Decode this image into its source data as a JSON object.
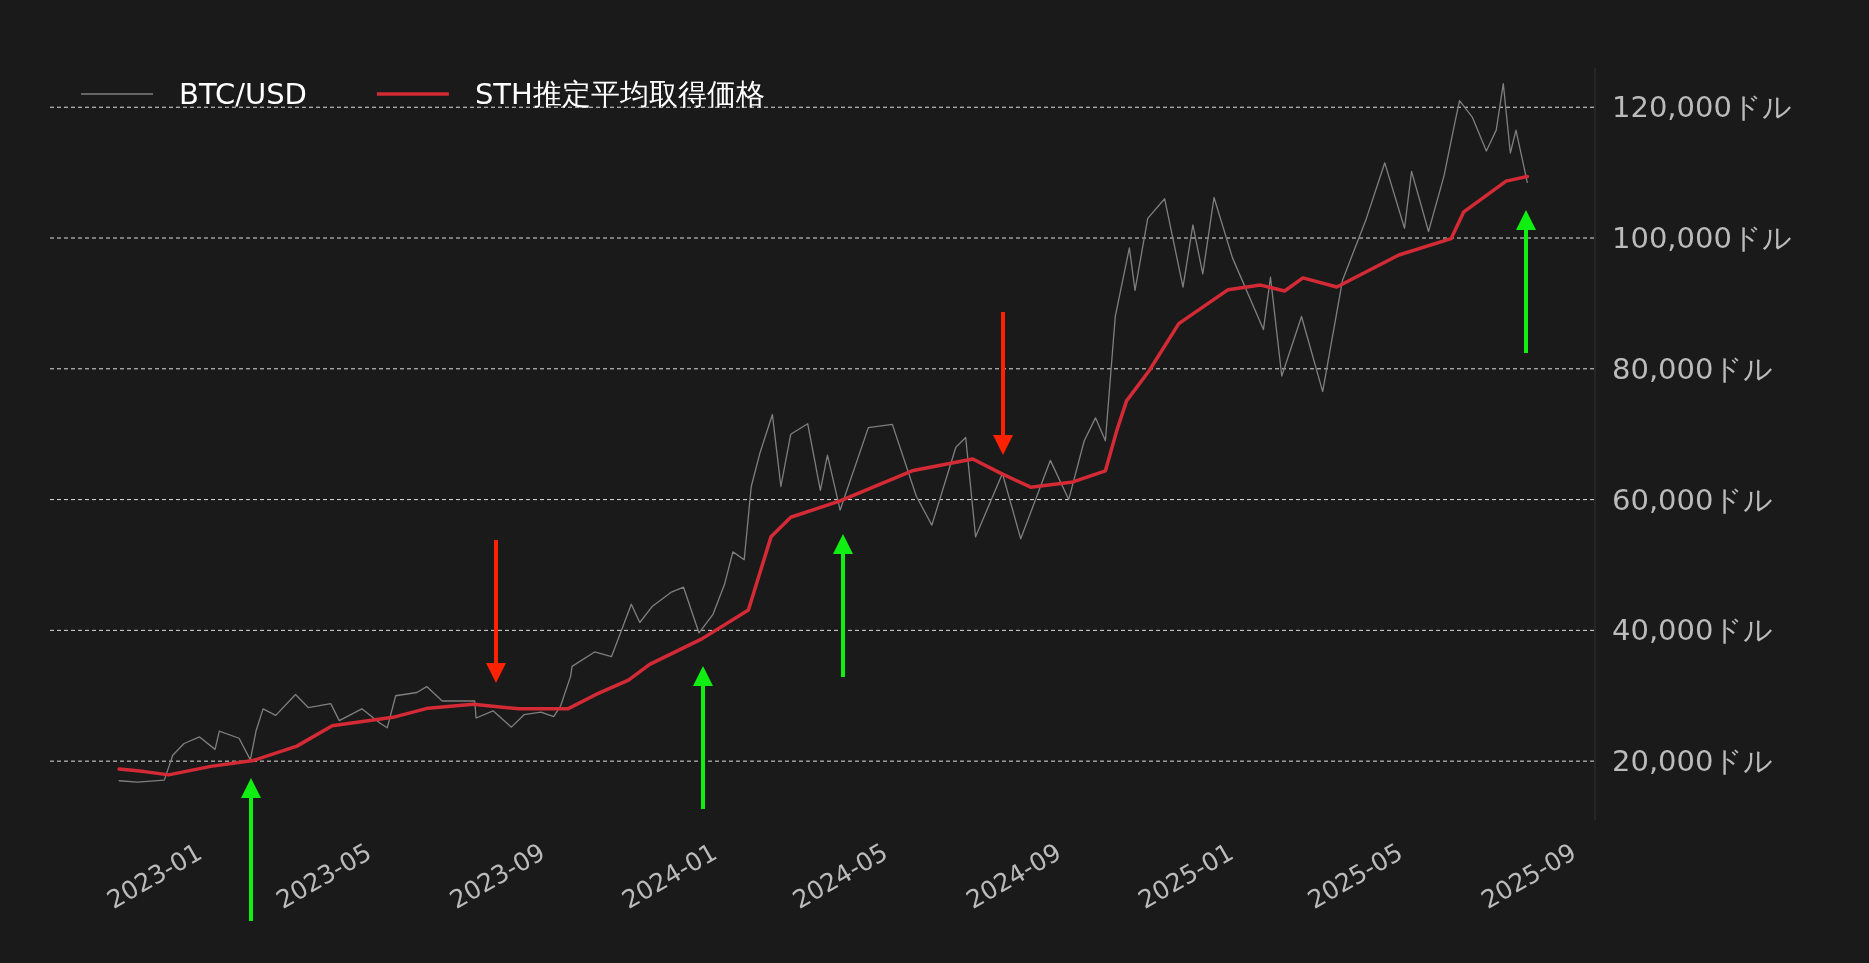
{
  "chart_data": {
    "type": "line",
    "legend": "top left",
    "grid": "y",
    "marker": "none",
    "line_style": "solid",
    "xlim": [
      "2022-10-19",
      "2025-10-18"
    ],
    "ylim": [
      11000,
      126000
    ],
    "xticks": [
      "2023-01",
      "2023-05",
      "2023-09",
      "2024-01",
      "2024-05",
      "2024-09",
      "2025-01",
      "2025-05",
      "2025-09"
    ],
    "yticks": [
      {
        "value": 20000,
        "label": "20,000ドル"
      },
      {
        "value": 40000,
        "label": "40,000ドル"
      },
      {
        "value": 60000,
        "label": "60,000ドル"
      },
      {
        "value": 80000,
        "label": "80,000ドル"
      },
      {
        "value": 100000,
        "label": "100,000ドル"
      },
      {
        "value": 120000,
        "label": "120,000ドル"
      }
    ],
    "series": [
      {
        "name": "BTC/USD",
        "color": "#7f7f7f",
        "x": [
          "2022-12-07",
          "2022-12-20",
          "2023-01-08",
          "2023-01-14",
          "2023-01-22",
          "2023-02-02",
          "2023-02-13",
          "2023-02-16",
          "2023-03-02",
          "2023-03-10",
          "2023-03-14",
          "2023-03-19",
          "2023-03-28",
          "2023-04-11",
          "2023-04-20",
          "2023-04-26",
          "2023-05-06",
          "2023-05-12",
          "2023-05-28",
          "2023-06-10",
          "2023-06-15",
          "2023-06-21",
          "2023-07-06",
          "2023-07-13",
          "2023-07-24",
          "2023-08-16",
          "2023-08-17",
          "2023-08-29",
          "2023-09-11",
          "2023-09-20",
          "2023-10-02",
          "2023-10-11",
          "2023-10-16",
          "2023-10-23",
          "2023-10-24",
          "2023-11-09",
          "2023-11-21",
          "2023-12-05",
          "2023-12-11",
          "2023-12-20",
          "2024-01-02",
          "2024-01-11",
          "2024-01-22",
          "2024-02-01",
          "2024-02-09",
          "2024-02-15",
          "2024-02-23",
          "2024-02-28",
          "2024-03-05",
          "2024-03-14",
          "2024-03-20",
          "2024-03-27",
          "2024-04-08",
          "2024-04-17",
          "2024-04-22",
          "2024-05-01",
          "2024-05-21",
          "2024-06-07",
          "2024-06-24",
          "2024-07-05",
          "2024-07-22",
          "2024-07-29",
          "2024-08-05",
          "2024-08-24",
          "2024-09-06",
          "2024-09-27",
          "2024-10-10",
          "2024-10-21",
          "2024-10-29",
          "2024-11-05",
          "2024-11-12",
          "2024-11-22",
          "2024-11-26",
          "2024-12-05",
          "2024-12-17",
          "2024-12-30",
          "2025-01-06",
          "2025-01-13",
          "2025-01-21",
          "2025-02-03",
          "2025-02-25",
          "2025-03-02",
          "2025-03-10",
          "2025-03-24",
          "2025-04-08",
          "2025-04-22",
          "2025-05-09",
          "2025-05-22",
          "2025-06-05",
          "2025-06-10",
          "2025-06-22",
          "2025-07-03",
          "2025-07-11",
          "2025-07-14",
          "2025-07-23",
          "2025-08-02",
          "2025-08-09",
          "2025-08-14",
          "2025-08-19",
          "2025-08-23",
          "2025-08-31"
        ],
        "values": [
          17000,
          16800,
          17100,
          20900,
          22700,
          23700,
          21800,
          24600,
          23500,
          20200,
          24600,
          28000,
          27000,
          30200,
          28200,
          28400,
          28800,
          26200,
          28000,
          25800,
          25100,
          30000,
          30500,
          31400,
          29200,
          29200,
          26600,
          27700,
          25200,
          27100,
          27500,
          26800,
          28500,
          33000,
          34500,
          36700,
          36000,
          44000,
          41200,
          43700,
          45800,
          46600,
          39600,
          42500,
          47000,
          52000,
          50800,
          62000,
          67000,
          73000,
          62000,
          70000,
          71600,
          61400,
          66800,
          58400,
          71000,
          71500,
          60500,
          56100,
          68000,
          69500,
          54300,
          64000,
          54000,
          66000,
          60000,
          69000,
          72500,
          69000,
          88000,
          98500,
          92000,
          103000,
          106000,
          92500,
          102000,
          94500,
          106200,
          97000,
          86000,
          94000,
          78900,
          88000,
          76500,
          93500,
          103000,
          111500,
          101500,
          110200,
          101000,
          109500,
          118000,
          121000,
          118500,
          113300,
          116500,
          123600,
          113000,
          116500,
          108500
        ]
      },
      {
        "name": "STH推定平均取得価格",
        "color": "#d42a35",
        "x": [
          "2022-12-07",
          "2022-12-25",
          "2023-01-11",
          "2023-02-10",
          "2023-03-12",
          "2023-04-12",
          "2023-05-07",
          "2023-06-19",
          "2023-07-14",
          "2023-08-15",
          "2023-09-16",
          "2023-10-21",
          "2023-11-10",
          "2023-12-03",
          "2023-12-18",
          "2024-01-24",
          "2024-02-26",
          "2024-03-13",
          "2024-03-27",
          "2024-05-01",
          "2024-06-21",
          "2024-08-03",
          "2024-08-23",
          "2024-09-13",
          "2024-10-13",
          "2024-11-05",
          "2024-11-13",
          "2024-11-20",
          "2024-12-06",
          "2024-12-27",
          "2025-01-31",
          "2025-02-23",
          "2025-03-12",
          "2025-03-25",
          "2025-04-18",
          "2025-06-01",
          "2025-07-08",
          "2025-07-17",
          "2025-08-16",
          "2025-08-31"
        ],
        "values": [
          18800,
          18400,
          17900,
          19200,
          20100,
          22300,
          25400,
          26700,
          28100,
          28700,
          28000,
          28000,
          30200,
          32400,
          34800,
          38700,
          43100,
          54300,
          57300,
          59800,
          64400,
          66200,
          64000,
          61900,
          62700,
          64400,
          70500,
          75100,
          79700,
          86900,
          92100,
          92800,
          91900,
          93900,
          92500,
          97400,
          99900,
          104000,
          108700,
          109400
        ]
      }
    ]
  }
}
